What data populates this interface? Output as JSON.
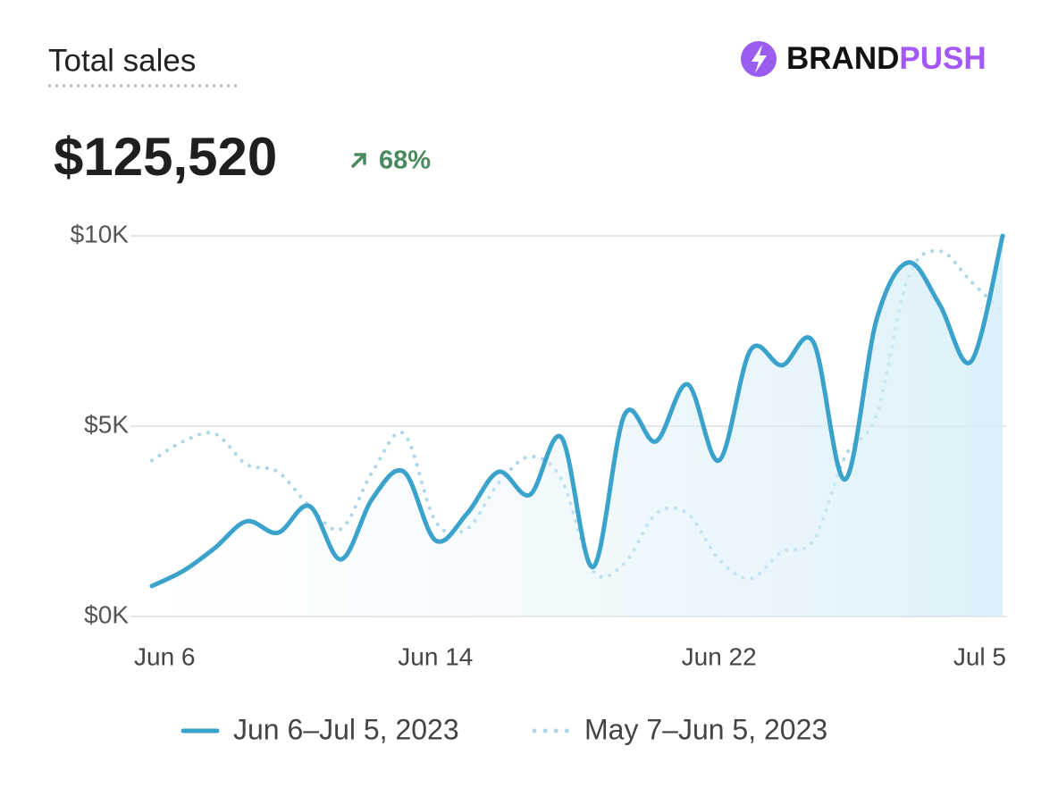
{
  "header": {
    "title": "Total sales",
    "total": "$125,520",
    "change": "68%",
    "brand_primary": "BRAND",
    "brand_accent": "PUSH"
  },
  "chart_data": {
    "type": "line",
    "categories": [
      "Jun 6",
      null,
      null,
      null,
      null,
      null,
      null,
      null,
      null,
      "Jun 14",
      null,
      null,
      null,
      null,
      null,
      null,
      null,
      null,
      "Jun 22",
      null,
      null,
      null,
      null,
      null,
      null,
      null,
      null,
      "Jul 5"
    ],
    "series": [
      {
        "name": "Jun 6–Jul 5, 2023",
        "color": "#3ba2cc",
        "style": "solid",
        "values": [
          800,
          1200,
          1800,
          2500,
          2200,
          2900,
          1500,
          3100,
          3800,
          2000,
          2700,
          3800,
          3200,
          4700,
          1300,
          5300,
          4600,
          6100,
          4100,
          7000,
          6600,
          7200,
          3600,
          7800,
          9300,
          8200,
          6700,
          10000
        ]
      },
      {
        "name": "May 7–Jun 5, 2023",
        "color": "#abd7e9",
        "style": "dotted",
        "values": [
          4100,
          4600,
          4800,
          4000,
          3800,
          2900,
          2300,
          3800,
          4800,
          2500,
          2300,
          3500,
          4200,
          3600,
          1200,
          1400,
          2700,
          2700,
          1500,
          1000,
          1700,
          2000,
          4200,
          5300,
          8900,
          9600,
          8800,
          8000
        ]
      }
    ],
    "ylim": [
      0,
      10000
    ],
    "yticks": [
      {
        "value": 0,
        "label": "$0K"
      },
      {
        "value": 5000,
        "label": "$5K"
      },
      {
        "value": 10000,
        "label": "$10K"
      }
    ],
    "grid": true
  }
}
